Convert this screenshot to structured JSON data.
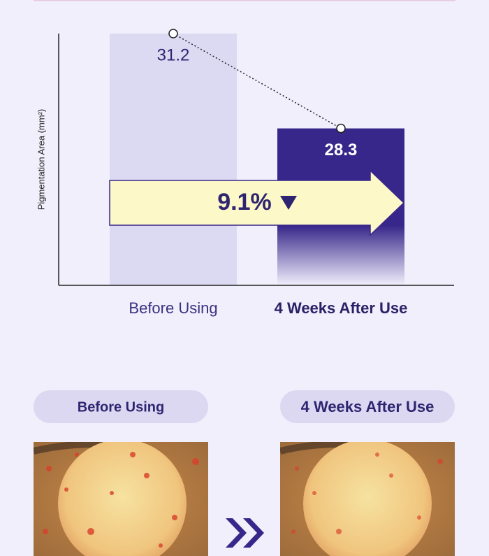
{
  "chart_data": {
    "type": "bar",
    "y_label": "Pigmentation Area (mm²)",
    "categories": [
      "Before Using",
      "4 Weeks After Use"
    ],
    "values": [
      31.2,
      28.3
    ],
    "colors": [
      "#dcd9f3",
      "#38278a"
    ],
    "ylim": [
      23.5,
      31.2
    ],
    "annotation": "9.1%"
  },
  "comparison": {
    "labels": [
      "Before Using",
      "4 Weeks After Use"
    ]
  }
}
